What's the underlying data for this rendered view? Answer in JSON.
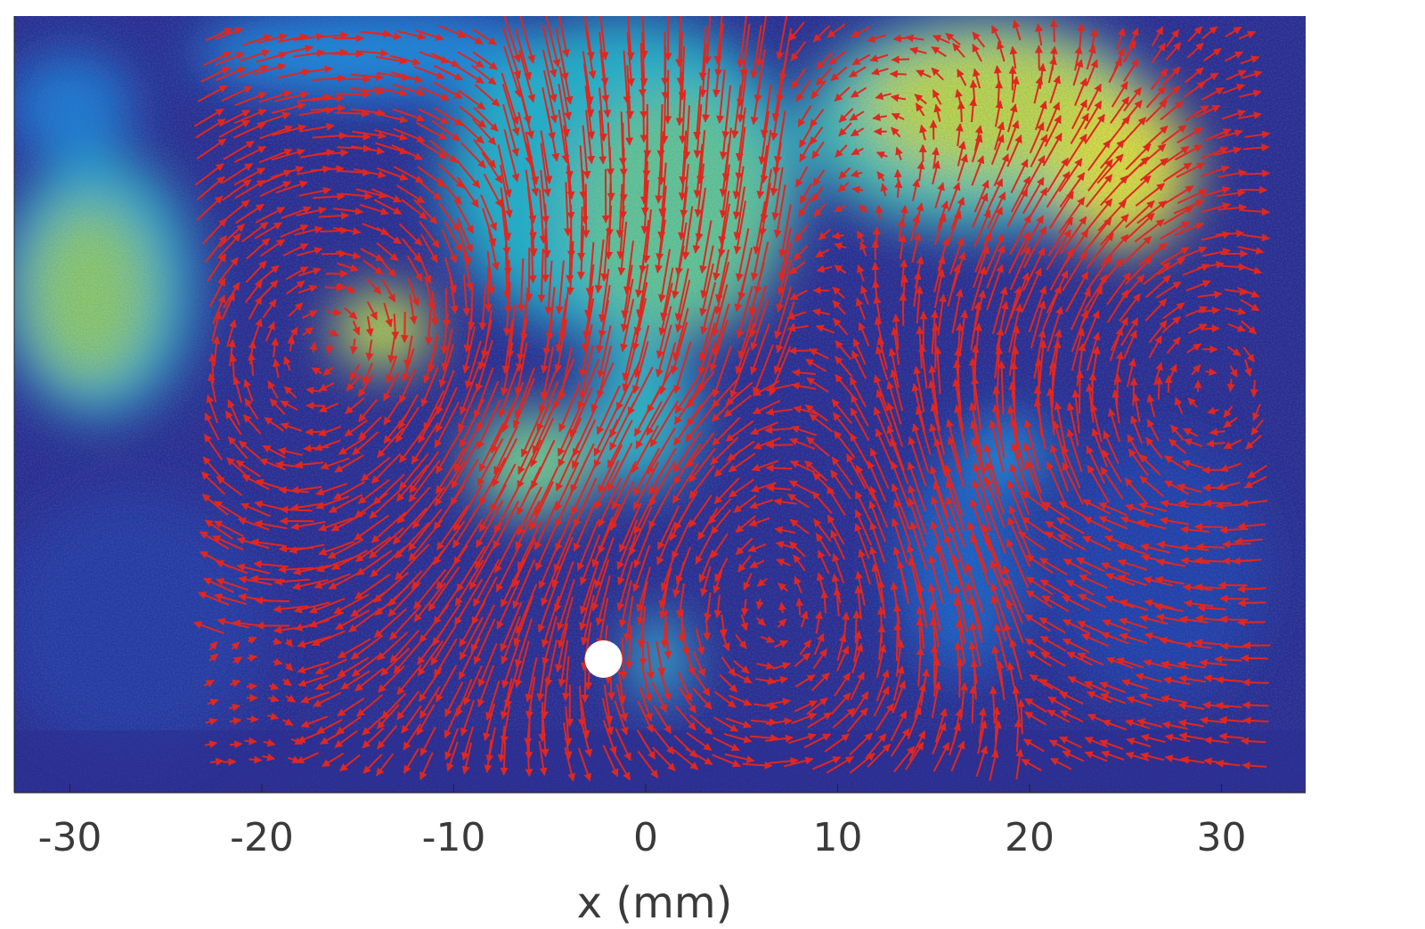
{
  "chart_data": {
    "type": "vector_field_heatmap",
    "xlabel": "x (mm)",
    "ylabel": "",
    "title": "",
    "xlim": [
      -33,
      34
    ],
    "xticks": [
      -30,
      -20,
      -10,
      0,
      10,
      20,
      30
    ],
    "xtick_labels": [
      "-30",
      "-20",
      "-10",
      "0",
      "10",
      "20",
      "30"
    ],
    "grid": false,
    "legend": "none",
    "colormap": [
      "#2a2c8e",
      "#1565c0",
      "#1e88d8",
      "#22b5c8",
      "#5ec59a",
      "#c7d83a",
      "#f2e33a"
    ],
    "arrow_color": "#e0271f",
    "marker": {
      "x": -2.2,
      "label": "",
      "color": "#ffffff"
    }
  }
}
